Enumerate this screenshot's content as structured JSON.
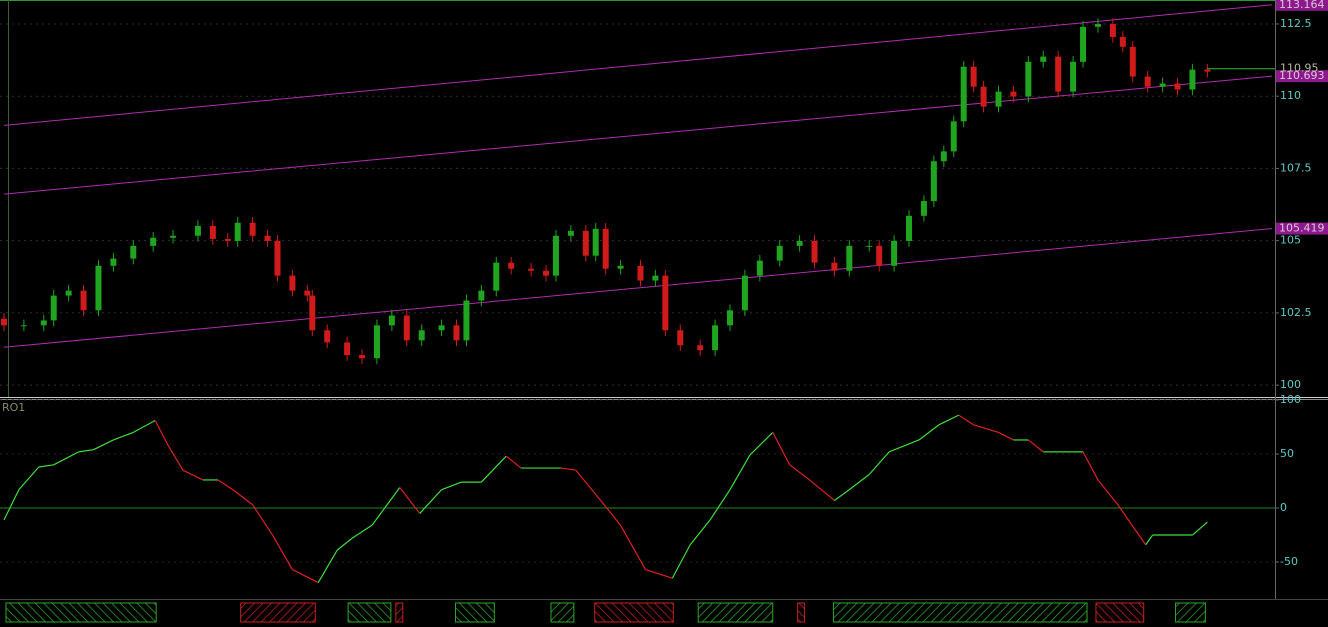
{
  "chart_data": [
    {
      "type": "candlestick",
      "up_color": "#1fa51f",
      "down_color": "#d11b1b",
      "xlim": [
        0,
        1275
      ],
      "ylim": [
        99.59,
        113.26
      ],
      "yticks": [
        100,
        102.5,
        105,
        107.5,
        110,
        112.5
      ],
      "grid": true,
      "x": [
        0,
        20,
        40,
        50,
        65,
        80,
        95,
        110,
        130,
        150,
        170,
        195,
        210,
        225,
        235,
        250,
        265,
        275,
        290,
        305,
        310,
        325,
        345,
        360,
        375,
        390,
        405,
        420,
        440,
        455,
        465,
        480,
        495,
        510,
        530,
        545,
        555,
        570,
        585,
        595,
        605,
        620,
        640,
        655,
        665,
        680,
        700,
        715,
        730,
        745,
        760,
        780,
        800,
        815,
        835,
        850,
        870,
        880,
        895,
        910,
        925,
        935,
        945,
        955,
        965,
        975,
        985,
        1000,
        1015,
        1030,
        1045,
        1060,
        1075,
        1085,
        1100,
        1115,
        1125,
        1135,
        1150,
        1165,
        1180,
        1195,
        1210
      ],
      "ohlc": [
        [
          102.3,
          102.5,
          101.87,
          102.07
        ],
        [
          102.07,
          102.27,
          101.87,
          102.07
        ],
        [
          102.07,
          102.44,
          101.87,
          102.24
        ],
        [
          102.24,
          103.3,
          102.04,
          103.1
        ],
        [
          103.1,
          103.47,
          102.9,
          103.27
        ],
        [
          103.27,
          103.47,
          102.39,
          102.59
        ],
        [
          102.59,
          104.33,
          102.39,
          104.13
        ],
        [
          104.13,
          104.58,
          103.93,
          104.38
        ],
        [
          104.38,
          105.02,
          104.18,
          104.82
        ],
        [
          104.82,
          105.3,
          104.62,
          105.1
        ],
        [
          105.1,
          105.37,
          104.9,
          105.17
        ],
        [
          105.17,
          105.71,
          104.97,
          105.51
        ],
        [
          105.51,
          105.71,
          104.86,
          105.06
        ],
        [
          105.06,
          105.26,
          104.79,
          104.99
        ],
        [
          104.99,
          105.82,
          104.79,
          105.62
        ],
        [
          105.62,
          105.82,
          104.97,
          105.17
        ],
        [
          105.17,
          105.37,
          104.79,
          104.99
        ],
        [
          104.99,
          105.19,
          103.59,
          103.79
        ],
        [
          103.79,
          103.99,
          103.07,
          103.27
        ],
        [
          103.27,
          103.47,
          102.9,
          103.1
        ],
        [
          103.1,
          103.3,
          101.7,
          101.9
        ],
        [
          101.9,
          102.1,
          101.28,
          101.48
        ],
        [
          101.48,
          101.68,
          100.84,
          101.04
        ],
        [
          101.04,
          101.24,
          100.73,
          100.93
        ],
        [
          100.93,
          102.27,
          100.73,
          102.07
        ],
        [
          102.07,
          102.61,
          101.87,
          102.41
        ],
        [
          102.41,
          102.61,
          101.35,
          101.55
        ],
        [
          101.55,
          102.1,
          101.35,
          101.9
        ],
        [
          101.9,
          102.27,
          101.7,
          102.07
        ],
        [
          102.07,
          102.27,
          101.35,
          101.55
        ],
        [
          101.55,
          103.13,
          101.35,
          102.93
        ],
        [
          102.93,
          103.47,
          102.73,
          103.27
        ],
        [
          103.27,
          104.44,
          103.07,
          104.24
        ],
        [
          104.24,
          104.44,
          103.83,
          104.03
        ],
        [
          104.03,
          104.23,
          103.76,
          103.96
        ],
        [
          103.96,
          104.16,
          103.59,
          103.79
        ],
        [
          103.79,
          105.37,
          103.59,
          105.17
        ],
        [
          105.17,
          105.54,
          104.97,
          105.34
        ],
        [
          105.34,
          105.54,
          104.28,
          104.48
        ],
        [
          104.48,
          105.61,
          104.28,
          105.41
        ],
        [
          105.41,
          105.61,
          103.83,
          104.03
        ],
        [
          104.03,
          104.33,
          103.83,
          104.13
        ],
        [
          104.13,
          104.33,
          103.42,
          103.62
        ],
        [
          103.62,
          103.99,
          103.42,
          103.79
        ],
        [
          103.79,
          103.99,
          101.7,
          101.9
        ],
        [
          101.9,
          102.1,
          101.18,
          101.38
        ],
        [
          101.38,
          101.58,
          101.01,
          101.21
        ],
        [
          101.21,
          102.27,
          101.01,
          102.07
        ],
        [
          102.07,
          102.79,
          101.87,
          102.59
        ],
        [
          102.59,
          103.99,
          102.39,
          103.79
        ],
        [
          103.79,
          104.51,
          103.59,
          104.31
        ],
        [
          104.31,
          105.02,
          104.11,
          104.82
        ],
        [
          104.82,
          105.19,
          104.62,
          104.99
        ],
        [
          104.99,
          105.19,
          104.04,
          104.24
        ],
        [
          104.24,
          104.44,
          103.76,
          103.96
        ],
        [
          103.96,
          105.02,
          103.76,
          104.82
        ],
        [
          104.82,
          105.02,
          104.62,
          104.82
        ],
        [
          104.82,
          105.02,
          103.93,
          104.13
        ],
        [
          104.13,
          105.19,
          103.93,
          104.99
        ],
        [
          104.99,
          106.06,
          104.79,
          105.86
        ],
        [
          105.86,
          106.57,
          105.66,
          106.37
        ],
        [
          106.37,
          107.95,
          106.17,
          107.75
        ],
        [
          107.75,
          108.29,
          107.55,
          108.09
        ],
        [
          108.09,
          109.33,
          107.89,
          109.13
        ],
        [
          109.13,
          111.22,
          108.93,
          111.02
        ],
        [
          111.02,
          111.22,
          110.13,
          110.33
        ],
        [
          110.33,
          110.53,
          109.44,
          109.64
        ],
        [
          109.64,
          110.36,
          109.44,
          110.16
        ],
        [
          110.16,
          110.36,
          109.79,
          109.99
        ],
        [
          109.99,
          111.39,
          109.79,
          111.19
        ],
        [
          111.19,
          111.57,
          110.99,
          111.37
        ],
        [
          111.37,
          111.57,
          109.96,
          110.16
        ],
        [
          110.16,
          111.39,
          109.96,
          111.19
        ],
        [
          111.19,
          112.6,
          110.99,
          112.4
        ],
        [
          112.4,
          112.7,
          112.2,
          112.5
        ],
        [
          112.5,
          112.7,
          111.85,
          112.05
        ],
        [
          112.05,
          112.25,
          111.51,
          111.71
        ],
        [
          111.71,
          111.91,
          110.48,
          110.68
        ],
        [
          110.68,
          110.88,
          110.13,
          110.33
        ],
        [
          110.33,
          110.64,
          110.13,
          110.44
        ],
        [
          110.44,
          110.64,
          110.03,
          110.23
        ],
        [
          110.23,
          111.12,
          110.03,
          110.92
        ],
        [
          110.92,
          111.12,
          110.65,
          110.85
        ]
      ],
      "channel_color": "#b02cb0",
      "channels": [
        [
          108.99,
          113.164
        ],
        [
          106.61,
          110.693
        ],
        [
          101.31,
          105.419
        ]
      ],
      "last_price": 110.95,
      "last_color": "#2ec02e"
    },
    {
      "type": "line",
      "title": "RO1",
      "up_color": "#3ce03c",
      "down_color": "#e02020",
      "zero_color": "#1c8a1c",
      "xlim": [
        0,
        1275
      ],
      "ylim": [
        -83.3,
        100
      ],
      "yticks": [
        -50,
        0,
        50,
        100
      ],
      "x": [
        0,
        15,
        35,
        50,
        75,
        90,
        110,
        130,
        152,
        165,
        180,
        200,
        215,
        230,
        250,
        270,
        290,
        316,
        335,
        350,
        370,
        398,
        418,
        440,
        460,
        480,
        505,
        520,
        560,
        575,
        600,
        620,
        645,
        672,
        690,
        710,
        730,
        750,
        773,
        790,
        810,
        835,
        850,
        870,
        890,
        920,
        940,
        960,
        975,
        1000,
        1015,
        1030,
        1045,
        1085,
        1100,
        1120,
        1148,
        1155,
        1195,
        1210
      ],
      "values": [
        -11,
        17,
        38,
        40,
        52,
        54,
        63,
        70,
        81,
        58,
        35,
        26,
        26,
        17,
        3,
        -25,
        -57,
        -69,
        -39,
        -28,
        -16,
        19,
        -5,
        17,
        24,
        24,
        48,
        37,
        37,
        35,
        7,
        -16,
        -57,
        -65,
        -34,
        -11,
        17,
        49,
        70,
        40,
        26,
        7,
        17,
        31,
        52,
        63,
        77,
        86,
        77,
        70,
        63,
        63,
        52,
        52,
        26,
        3,
        -34,
        -25,
        -25,
        -13
      ]
    },
    {
      "type": "ranges",
      "xlim": [
        0,
        1275
      ],
      "ranges": [
        {
          "x": [
            2,
            153
          ],
          "color": "#2aa82a"
        },
        {
          "x": [
            238,
            313
          ],
          "color": "#c82020"
        },
        {
          "x": [
            346,
            389
          ],
          "color": "#2aa82a"
        },
        {
          "x": [
            394,
            401
          ],
          "color": "#c82020"
        },
        {
          "x": [
            454,
            493
          ],
          "color": "#2aa82a"
        },
        {
          "x": [
            550,
            573
          ],
          "color": "#2aa82a"
        },
        {
          "x": [
            594,
            673
          ],
          "color": "#c82020"
        },
        {
          "x": [
            698,
            773
          ],
          "color": "#2aa82a"
        },
        {
          "x": [
            798,
            805
          ],
          "color": "#c82020"
        },
        {
          "x": [
            834,
            1089
          ],
          "color": "#2aa82a"
        },
        {
          "x": [
            1098,
            1146
          ],
          "color": "#c82020"
        },
        {
          "x": [
            1178,
            1208
          ],
          "color": "#2aa82a"
        }
      ]
    }
  ]
}
